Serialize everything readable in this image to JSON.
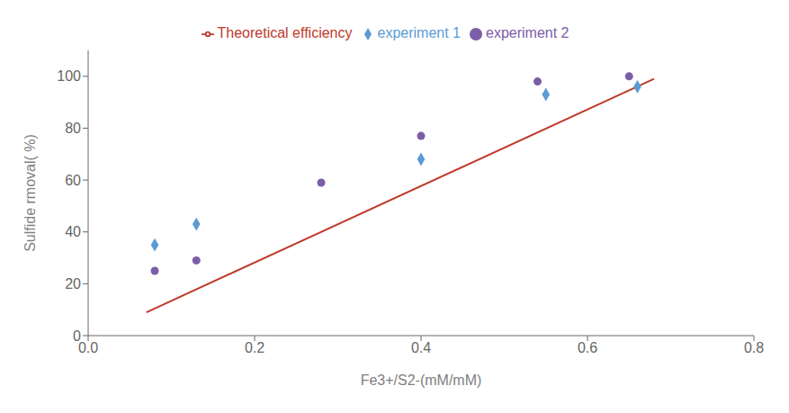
{
  "chart_data": {
    "type": "scatter",
    "xlabel": "Fe3+/S2-(mM/mM)",
    "ylabel": "Sulfide rmoval( %)",
    "xlim": [
      0.0,
      0.8
    ],
    "ylim": [
      0,
      110
    ],
    "xticks": [
      {
        "value": 0.0,
        "label": "0.0"
      },
      0.2,
      0.4,
      0.6,
      0.8
    ],
    "yticks": [
      0,
      20,
      40,
      60,
      80,
      100
    ],
    "grid": false,
    "legend": "top",
    "series": [
      {
        "name": "Theoretical efficiency",
        "type": "line",
        "color": "#c0392b",
        "x": [
          0.07,
          0.68
        ],
        "values": [
          9,
          99
        ]
      },
      {
        "name": "experiment 1",
        "type": "scatter",
        "color": "#5b9bd5",
        "marker": "diamond",
        "x": [
          0.08,
          0.13,
          0.4,
          0.55,
          0.66
        ],
        "values": [
          35,
          43,
          68,
          93,
          96
        ]
      },
      {
        "name": "experiment 2",
        "type": "scatter",
        "color": "#7b5ea7",
        "marker": "circle",
        "x": [
          0.08,
          0.13,
          0.28,
          0.4,
          0.54,
          0.65
        ],
        "values": [
          25,
          29,
          59,
          77,
          98,
          100
        ]
      }
    ]
  }
}
